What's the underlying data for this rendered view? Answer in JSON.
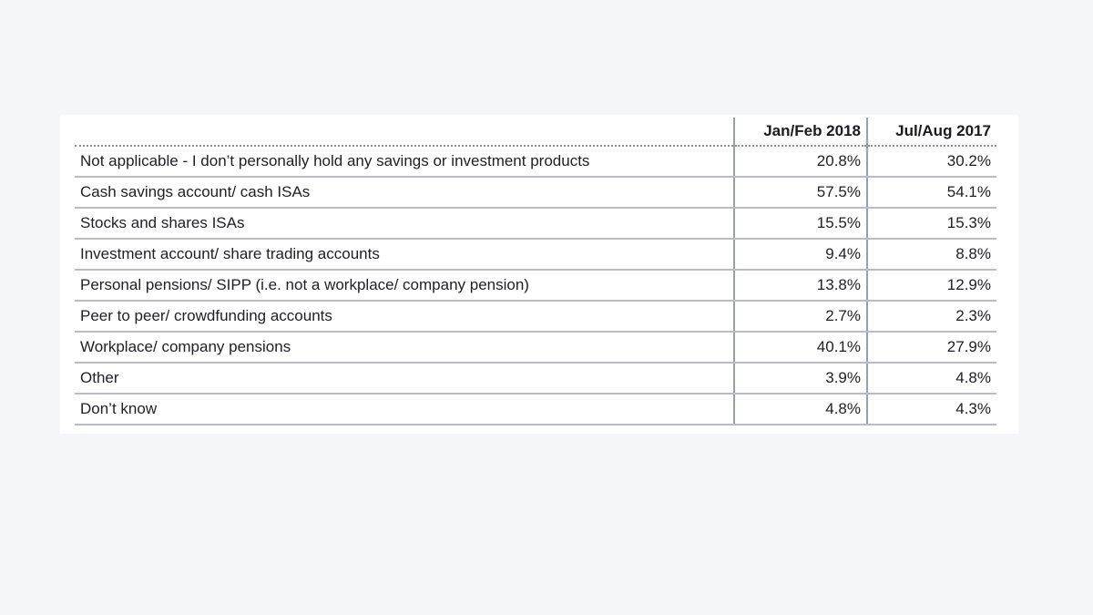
{
  "chart_data": {
    "type": "table",
    "columns": [
      "",
      "Jan/Feb 2018",
      "Jul/Aug 2017"
    ],
    "rows": [
      {
        "label": "Not applicable - I don’t personally hold any savings or investment products",
        "jan_feb_2018": "20.8%",
        "jul_aug_2017": "30.2%"
      },
      {
        "label": "Cash savings account/ cash ISAs",
        "jan_feb_2018": "57.5%",
        "jul_aug_2017": "54.1%"
      },
      {
        "label": "Stocks and shares ISAs",
        "jan_feb_2018": "15.5%",
        "jul_aug_2017": "15.3%"
      },
      {
        "label": "Investment account/ share trading accounts",
        "jan_feb_2018": "9.4%",
        "jul_aug_2017": "8.8%"
      },
      {
        "label": "Personal pensions/ SIPP (i.e. not a workplace/ company pension)",
        "jan_feb_2018": "13.8%",
        "jul_aug_2017": "12.9%"
      },
      {
        "label": "Peer to peer/ crowdfunding accounts",
        "jan_feb_2018": "2.7%",
        "jul_aug_2017": "2.3%"
      },
      {
        "label": "Workplace/ company pensions",
        "jan_feb_2018": "40.1%",
        "jul_aug_2017": "27.9%"
      },
      {
        "label": "Other",
        "jan_feb_2018": "3.9%",
        "jul_aug_2017": "4.8%"
      },
      {
        "label": "Don’t know",
        "jan_feb_2018": "4.8%",
        "jul_aug_2017": "4.3%"
      }
    ]
  }
}
